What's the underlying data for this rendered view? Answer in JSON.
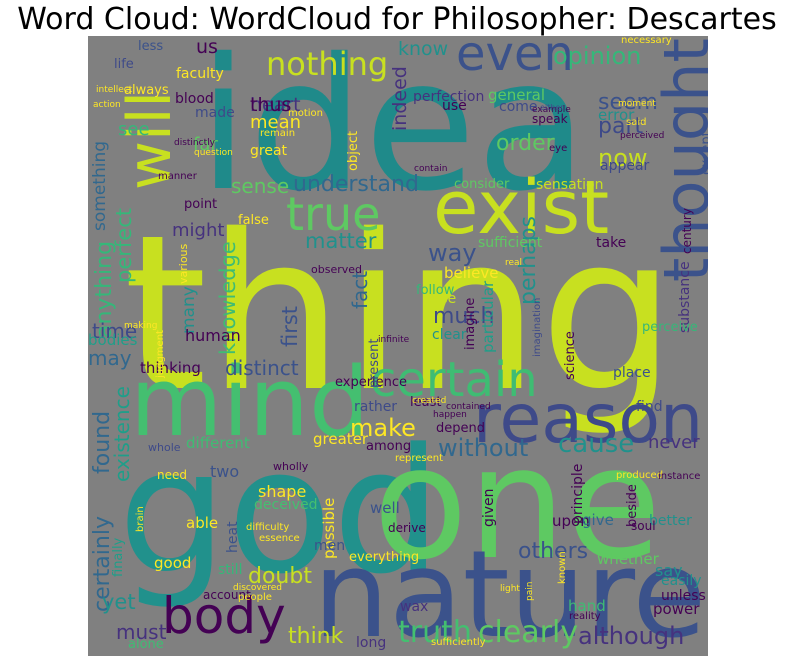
{
  "title": "Word Cloud:  WordCloud for  Philosopher: Descartes",
  "cloud": {
    "background": "#808080",
    "palette": [
      "#440154",
      "#3b528b",
      "#21918c",
      "#5ec962",
      "#fde725"
    ],
    "words": [
      {
        "text": "thing",
        "color": "#c8e020"
      },
      {
        "text": "idea",
        "color": "#1f8a8a"
      },
      {
        "text": "god",
        "color": "#21918c"
      },
      {
        "text": "one",
        "color": "#5ec962"
      },
      {
        "text": "nature",
        "color": "#3b528b"
      },
      {
        "text": "mind",
        "color": "#44bf70"
      },
      {
        "text": "exist",
        "color": "#c8e020"
      },
      {
        "text": "reason",
        "color": "#3e4a89"
      },
      {
        "text": "thought",
        "color": "#3b528b"
      },
      {
        "text": "will",
        "color": "#c8e020"
      },
      {
        "text": "even",
        "color": "#3b528b"
      },
      {
        "text": "certain",
        "color": "#3fbc73"
      },
      {
        "text": "true",
        "color": "#5ec962"
      },
      {
        "text": "body",
        "color": "#440154"
      },
      {
        "text": "nothing",
        "color": "#c8e020"
      },
      {
        "text": "truth",
        "color": "#44bf70"
      },
      {
        "text": "clearly",
        "color": "#5ec962"
      },
      {
        "text": "although",
        "color": "#46327e"
      },
      {
        "text": "understand",
        "color": "#31688e"
      },
      {
        "text": "opinion",
        "color": "#35b779"
      },
      {
        "text": "perhaps",
        "color": "#21918c"
      },
      {
        "text": "knowledge",
        "color": "#3fbc73"
      },
      {
        "text": "existence",
        "color": "#1f9e89"
      },
      {
        "text": "found",
        "color": "#31688e"
      },
      {
        "text": "certainly",
        "color": "#31688e"
      },
      {
        "text": "anything",
        "color": "#35b779"
      },
      {
        "text": "something",
        "color": "#31688e"
      },
      {
        "text": "perfect",
        "color": "#35b779"
      },
      {
        "text": "make",
        "color": "#fde725"
      },
      {
        "text": "cause",
        "color": "#21918c"
      },
      {
        "text": "without",
        "color": "#31688e"
      },
      {
        "text": "others",
        "color": "#3b528b"
      },
      {
        "text": "now",
        "color": "#c8e020"
      },
      {
        "text": "order",
        "color": "#5ec962"
      },
      {
        "text": "part",
        "color": "#3e4a89"
      },
      {
        "text": "seem",
        "color": "#3b528b"
      },
      {
        "text": "sense",
        "color": "#5ec962"
      },
      {
        "text": "matter",
        "color": "#21918c"
      },
      {
        "text": "way",
        "color": "#3b528b"
      },
      {
        "text": "much",
        "color": "#3e4a89"
      },
      {
        "text": "fact",
        "color": "#31688e"
      },
      {
        "text": "first",
        "color": "#3b528b"
      },
      {
        "text": "distinct",
        "color": "#3b528b"
      },
      {
        "text": "doubt",
        "color": "#c8e020"
      },
      {
        "text": "yet",
        "color": "#21918c"
      },
      {
        "text": "must",
        "color": "#46327e"
      },
      {
        "text": "think",
        "color": "#c8e020"
      },
      {
        "text": "time",
        "color": "#3e4a89"
      },
      {
        "text": "may",
        "color": "#31688e"
      },
      {
        "text": "us",
        "color": "#440154"
      },
      {
        "text": "know",
        "color": "#21918c"
      },
      {
        "text": "heart",
        "color": "#46327e"
      },
      {
        "text": "thus",
        "color": "#440154"
      },
      {
        "text": "mean",
        "color": "#fde725"
      },
      {
        "text": "far",
        "color": "#5ec962"
      },
      {
        "text": "see",
        "color": "#35b779"
      },
      {
        "text": "indeed",
        "color": "#46327e"
      },
      {
        "text": "perfection",
        "color": "#46327e"
      },
      {
        "text": "general",
        "color": "#5ec962"
      },
      {
        "text": "except",
        "color": "#3b528b"
      },
      {
        "text": "appear",
        "color": "#3e4a89"
      },
      {
        "text": "error",
        "color": "#21918c"
      },
      {
        "text": "consider",
        "color": "#5ec962"
      },
      {
        "text": "sensation",
        "color": "#c8e020"
      },
      {
        "text": "sufficient",
        "color": "#5ec962"
      },
      {
        "text": "take",
        "color": "#440154"
      },
      {
        "text": "believe",
        "color": "#fde725"
      },
      {
        "text": "follow",
        "color": "#35b779"
      },
      {
        "text": "case",
        "color": "#c8e020"
      },
      {
        "text": "clear",
        "color": "#21918c"
      },
      {
        "text": "particular",
        "color": "#1f9e89"
      },
      {
        "text": "imagine",
        "color": "#440154"
      },
      {
        "text": "substance",
        "color": "#46327e"
      },
      {
        "text": "perceive",
        "color": "#35b779"
      },
      {
        "text": "place",
        "color": "#3b528b"
      },
      {
        "text": "find",
        "color": "#3e4a89"
      },
      {
        "text": "never",
        "color": "#46327e"
      },
      {
        "text": "many",
        "color": "#21918c"
      },
      {
        "text": "might",
        "color": "#46327e"
      },
      {
        "text": "human",
        "color": "#440154"
      },
      {
        "text": "bodies",
        "color": "#1f9e89"
      },
      {
        "text": "thinking",
        "color": "#440154"
      },
      {
        "text": "different",
        "color": "#3fbc73"
      },
      {
        "text": "two",
        "color": "#3b528b"
      },
      {
        "text": "able",
        "color": "#fde725"
      },
      {
        "text": "shape",
        "color": "#fde725"
      },
      {
        "text": "deceived",
        "color": "#44bf70"
      },
      {
        "text": "heat",
        "color": "#3b528b"
      },
      {
        "text": "good",
        "color": "#fde725"
      },
      {
        "text": "still",
        "color": "#35b779"
      },
      {
        "text": "possible",
        "color": "#fde725"
      },
      {
        "text": "well",
        "color": "#3b528b"
      },
      {
        "text": "greater",
        "color": "#fde725"
      },
      {
        "text": "among",
        "color": "#440154"
      },
      {
        "text": "rather",
        "color": "#3e4a89"
      },
      {
        "text": "least",
        "color": "#440154"
      },
      {
        "text": "depend",
        "color": "#440154"
      },
      {
        "text": "experience",
        "color": "#440154"
      },
      {
        "text": "present",
        "color": "#3e4a89"
      },
      {
        "text": "science",
        "color": "#440154"
      },
      {
        "text": "principle",
        "color": "#440154"
      },
      {
        "text": "given",
        "color": "#440154"
      },
      {
        "text": "upon",
        "color": "#440154"
      },
      {
        "text": "give",
        "color": "#31688e"
      },
      {
        "text": "beside",
        "color": "#440154"
      },
      {
        "text": "better",
        "color": "#21918c"
      },
      {
        "text": "say",
        "color": "#21918c"
      },
      {
        "text": "whether",
        "color": "#5ec962"
      },
      {
        "text": "easily",
        "color": "#21918c"
      },
      {
        "text": "unless",
        "color": "#440154"
      },
      {
        "text": "power",
        "color": "#440154"
      },
      {
        "text": "hand",
        "color": "#3fbc73"
      },
      {
        "text": "men",
        "color": "#3b528b"
      },
      {
        "text": "everything",
        "color": "#fde725"
      },
      {
        "text": "long",
        "color": "#46327e"
      },
      {
        "text": "wax",
        "color": "#46327e"
      },
      {
        "text": "alone",
        "color": "#3fbc73"
      },
      {
        "text": "finally",
        "color": "#1f9e89"
      },
      {
        "text": "less",
        "color": "#3b528b"
      },
      {
        "text": "life",
        "color": "#3e4a89"
      },
      {
        "text": "always",
        "color": "#fde725"
      },
      {
        "text": "blood",
        "color": "#440154"
      },
      {
        "text": "faculty",
        "color": "#fde725"
      },
      {
        "text": "made",
        "color": "#3e4a89"
      },
      {
        "text": "great",
        "color": "#fde725"
      },
      {
        "text": "point",
        "color": "#440154"
      },
      {
        "text": "false",
        "color": "#fde725"
      },
      {
        "text": "use",
        "color": "#440154"
      },
      {
        "text": "come",
        "color": "#3e4a89"
      },
      {
        "text": "speak",
        "color": "#440154"
      },
      {
        "text": "necessary",
        "color": "#fde725"
      },
      {
        "text": "remain",
        "color": "#fde725"
      },
      {
        "text": "object",
        "color": "#fde725"
      },
      {
        "text": "question",
        "color": "#fde725"
      },
      {
        "text": "action",
        "color": "#fde725"
      },
      {
        "text": "moment",
        "color": "#fde725"
      },
      {
        "text": "perceived",
        "color": "#440154"
      },
      {
        "text": "contain",
        "color": "#440154"
      },
      {
        "text": "eye",
        "color": "#440154"
      },
      {
        "text": "example",
        "color": "#440154"
      },
      {
        "text": "said",
        "color": "#fde725"
      },
      {
        "text": "either",
        "color": "#3e4a89"
      },
      {
        "text": "motion",
        "color": "#fde725"
      },
      {
        "text": "manner",
        "color": "#440154"
      },
      {
        "text": "distinctly",
        "color": "#440154"
      },
      {
        "text": "real",
        "color": "#fde725"
      },
      {
        "text": "observed",
        "color": "#440154"
      },
      {
        "text": "various",
        "color": "#fde725"
      },
      {
        "text": "imagination",
        "color": "#3e4a89"
      },
      {
        "text": "infinite",
        "color": "#440154"
      },
      {
        "text": "created",
        "color": "#fde725"
      },
      {
        "text": "contained",
        "color": "#440154"
      },
      {
        "text": "happen",
        "color": "#440154"
      },
      {
        "text": "whole",
        "color": "#3e4a89"
      },
      {
        "text": "wholly",
        "color": "#440154"
      },
      {
        "text": "represent",
        "color": "#fde725"
      },
      {
        "text": "need",
        "color": "#fde725"
      },
      {
        "text": "produced",
        "color": "#fde725"
      },
      {
        "text": "instance",
        "color": "#440154"
      },
      {
        "text": "soul",
        "color": "#440154"
      },
      {
        "text": "brain",
        "color": "#fde725"
      },
      {
        "text": "difficulty",
        "color": "#fde725"
      },
      {
        "text": "essence",
        "color": "#fde725"
      },
      {
        "text": "derive",
        "color": "#440154"
      },
      {
        "text": "discovered",
        "color": "#fde725"
      },
      {
        "text": "account",
        "color": "#440154"
      },
      {
        "text": "people",
        "color": "#fde725"
      },
      {
        "text": "light",
        "color": "#fde725"
      },
      {
        "text": "pain",
        "color": "#fde725"
      },
      {
        "text": "known",
        "color": "#fde725"
      },
      {
        "text": "reality",
        "color": "#440154"
      },
      {
        "text": "sufficiently",
        "color": "#fde725"
      },
      {
        "text": "making",
        "color": "#fde725"
      },
      {
        "text": "judgment",
        "color": "#fde725"
      },
      {
        "text": "intellect",
        "color": "#fde725"
      },
      {
        "text": "century",
        "color": "#440154"
      }
    ]
  }
}
